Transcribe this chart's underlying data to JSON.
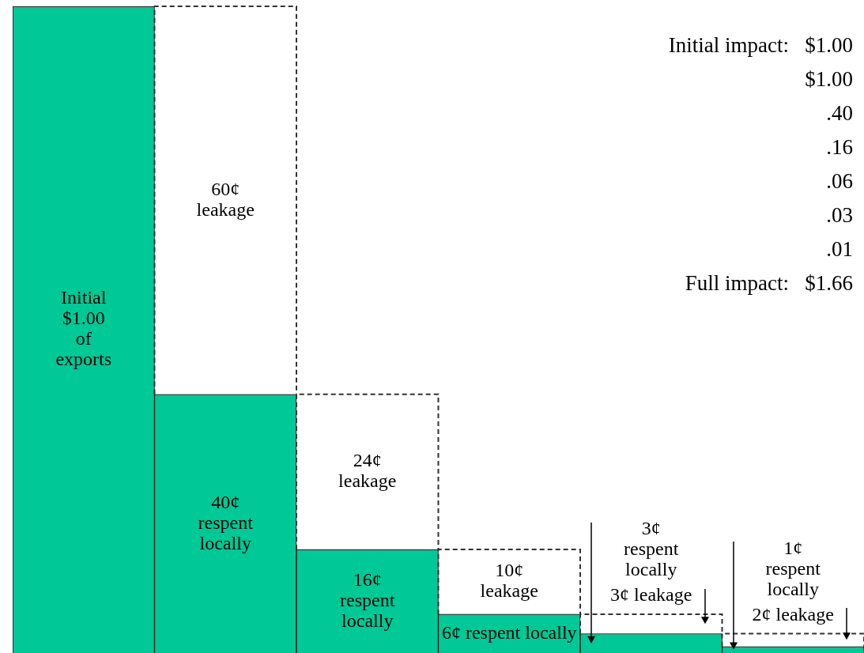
{
  "chart_data": {
    "type": "bar",
    "stacked": true,
    "categories": [
      null,
      null,
      null,
      null,
      null,
      null
    ],
    "series": [
      {
        "color": "#00c896",
        "values": [
          100,
          40,
          16,
          6,
          3,
          1
        ],
        "value_labels": [
          "Initial\n$1.00\nof\nexports",
          "40¢\nrespent\nlocally",
          "16¢\nrespent\nlocally",
          "6¢\nrespent\nlocally",
          "3¢\nrespent\nlocally",
          "1¢\nrespent\nlocally"
        ]
      },
      {
        "color": "#ffffff",
        "values": [
          null,
          60,
          24,
          10,
          3,
          2
        ],
        "value_labels": [
          null,
          "60¢\nleakage",
          "24¢\nleakage",
          "10¢\nleakage",
          "3¢ leakage",
          "2¢ leakage"
        ],
        "line_style": "dashed"
      }
    ],
    "ylim": [
      0,
      100
    ],
    "tick_labels": false,
    "legend": false,
    "annotations": [
      "Initial impact:   $1.00",
      "$1.00",
      ".40",
      ".16",
      ".06",
      ".03",
      ".01",
      "Full impact:   $1.66"
    ]
  }
}
